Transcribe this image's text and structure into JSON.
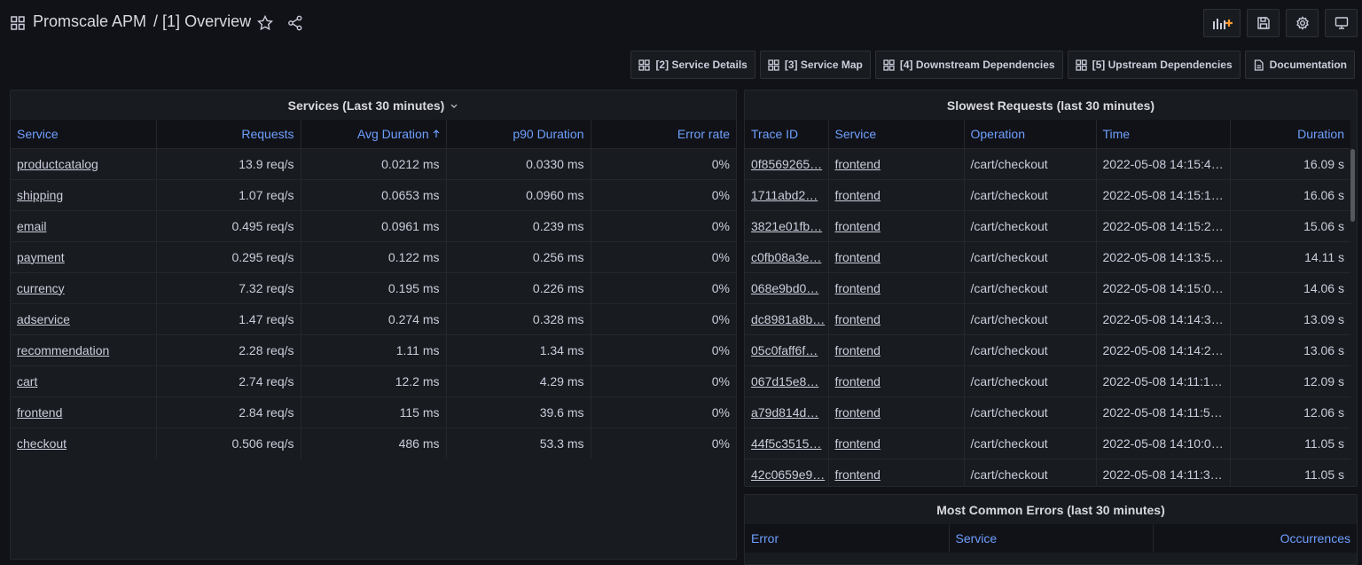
{
  "header": {
    "title": "Promscale APM",
    "breadcrumb": "/ [1] Overview"
  },
  "links": [
    "[2] Service Details",
    "[3] Service Map",
    "[4] Downstream Dependencies",
    "[5] Upstream Dependencies",
    "Documentation"
  ],
  "services_table": {
    "title": "Services (Last 30 minutes)",
    "columns": [
      "Service",
      "Requests",
      "Avg Duration",
      "p90 Duration",
      "Error rate"
    ],
    "rows": [
      [
        "productcatalog",
        "13.9 req/s",
        "0.0212 ms",
        "0.0330 ms",
        "0%"
      ],
      [
        "shipping",
        "1.07 req/s",
        "0.0653 ms",
        "0.0960 ms",
        "0%"
      ],
      [
        "email",
        "0.495 req/s",
        "0.0961 ms",
        "0.239 ms",
        "0%"
      ],
      [
        "payment",
        "0.295 req/s",
        "0.122 ms",
        "0.256 ms",
        "0%"
      ],
      [
        "currency",
        "7.32 req/s",
        "0.195 ms",
        "0.226 ms",
        "0%"
      ],
      [
        "adservice",
        "1.47 req/s",
        "0.274 ms",
        "0.328 ms",
        "0%"
      ],
      [
        "recommendation",
        "2.28 req/s",
        "1.11 ms",
        "1.34 ms",
        "0%"
      ],
      [
        "cart",
        "2.74 req/s",
        "12.2 ms",
        "4.29 ms",
        "0%"
      ],
      [
        "frontend",
        "2.84 req/s",
        "115 ms",
        "39.6 ms",
        "0%"
      ],
      [
        "checkout",
        "0.506 req/s",
        "486 ms",
        "53.3 ms",
        "0%"
      ]
    ]
  },
  "slowest_table": {
    "title": "Slowest Requests (last 30 minutes)",
    "columns": [
      "Trace ID",
      "Service",
      "Operation",
      "Time",
      "Duration"
    ],
    "rows": [
      [
        "0f8569265…",
        "frontend",
        "/cart/checkout",
        "2022-05-08 14:15:4…",
        "16.09 s"
      ],
      [
        "1711abd2…",
        "frontend",
        "/cart/checkout",
        "2022-05-08 14:15:1…",
        "16.06 s"
      ],
      [
        "3821e01fb…",
        "frontend",
        "/cart/checkout",
        "2022-05-08 14:15:2…",
        "15.06 s"
      ],
      [
        "c0fb08a3e…",
        "frontend",
        "/cart/checkout",
        "2022-05-08 14:13:5…",
        "14.11 s"
      ],
      [
        "068e9bd0…",
        "frontend",
        "/cart/checkout",
        "2022-05-08 14:15:0…",
        "14.06 s"
      ],
      [
        "dc8981a8b…",
        "frontend",
        "/cart/checkout",
        "2022-05-08 14:14:3…",
        "13.09 s"
      ],
      [
        "05c0faff6f…",
        "frontend",
        "/cart/checkout",
        "2022-05-08 14:14:2…",
        "13.06 s"
      ],
      [
        "067d15e8…",
        "frontend",
        "/cart/checkout",
        "2022-05-08 14:11:1…",
        "12.09 s"
      ],
      [
        "a79d814d…",
        "frontend",
        "/cart/checkout",
        "2022-05-08 14:11:5…",
        "12.06 s"
      ],
      [
        "44f5c3515…",
        "frontend",
        "/cart/checkout",
        "2022-05-08 14:10:0…",
        "11.05 s"
      ],
      [
        "42c0659e9…",
        "frontend",
        "/cart/checkout",
        "2022-05-08 14:11:3…",
        "11.05 s"
      ]
    ]
  },
  "errors_table": {
    "title": "Most Common Errors (last 30 minutes)",
    "columns": [
      "Error",
      "Service",
      "Occurrences"
    ]
  }
}
